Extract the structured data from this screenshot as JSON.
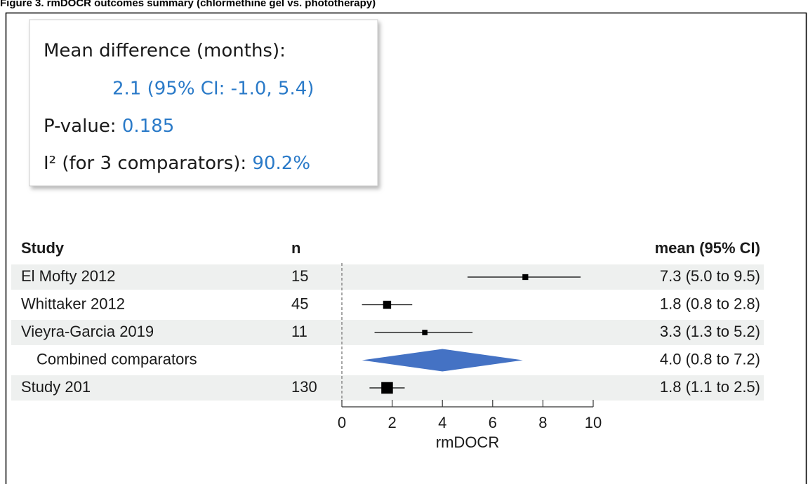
{
  "chart_data": {
    "type": "forest",
    "title": "Figure 3. rmDOCR outcomes summary (chlormethine gel vs. phototherapy)",
    "summary": {
      "mean_difference_label": "Mean difference (months):",
      "mean_difference_value": "2.1 (95% CI: -1.0, 5.4)",
      "p_value_label": "P-value:",
      "p_value": "0.185",
      "i2_label": "I² (for 3 comparators):",
      "i2_value": "90.2%"
    },
    "column_headers": {
      "study": "Study",
      "n": "n",
      "estimate": "mean (95% CI)"
    },
    "categories": [
      "El Mofty 2012",
      "Whittaker 2012",
      "Vieyra-Garcia 2019",
      "Combined comparators",
      "Study 201"
    ],
    "n": [
      15,
      45,
      11,
      null,
      130
    ],
    "values": [
      7.3,
      1.8,
      3.3,
      4.0,
      1.8
    ],
    "lower": [
      5.0,
      0.8,
      1.3,
      0.8,
      1.1
    ],
    "upper": [
      9.5,
      2.8,
      5.2,
      7.2,
      2.5
    ],
    "value_labels": [
      "7.3 (5.0 to 9.5)",
      "1.8 (0.8 to 2.8)",
      "3.3 (1.3 to 5.2)",
      "4.0 (0.8 to 7.2)",
      "1.8 (1.1 to 2.5)"
    ],
    "pooled": [
      false,
      false,
      false,
      true,
      false
    ],
    "marker_color": "#000000",
    "diamond_color": "#4472c4",
    "xlabel": "rmDOCR",
    "xlim": [
      0,
      10
    ],
    "xticks": [
      0,
      2,
      4,
      6,
      8,
      10
    ],
    "reference_line": 0
  }
}
